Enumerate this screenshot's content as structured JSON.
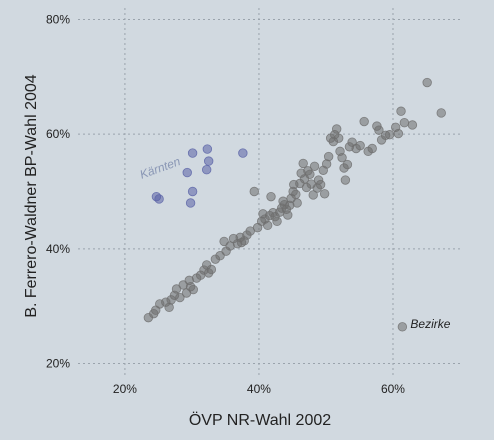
{
  "chart_data": {
    "type": "scatter",
    "xlabel": "ÖVP NR-Wahl 2002",
    "ylabel": "B. Ferrero-Waldner BP-Wahl 2004",
    "xlim": [
      0.13,
      0.7
    ],
    "ylim": [
      0.18,
      0.82
    ],
    "x_ticks": [
      0.2,
      0.4,
      0.6
    ],
    "x_tick_labels": [
      "20%",
      "40%",
      "60%"
    ],
    "y_ticks": [
      0.2,
      0.4,
      0.6,
      0.8
    ],
    "y_tick_labels": [
      "20%",
      "40%",
      "60%",
      "80%"
    ],
    "grid": true,
    "annotations": [
      {
        "text": "Kärnten",
        "x": 0.225,
        "y": 0.522,
        "color": "#8a97b5",
        "rotate": -20
      },
      {
        "text": "Bezirke",
        "x": 0.626,
        "y": 0.262,
        "color": "#222222",
        "marker_x": 0.614,
        "marker_y": 0.264
      }
    ],
    "series": [
      {
        "name": "Kärnten",
        "color": "#5961a6",
        "points": [
          [
            0.247,
            0.491
          ],
          [
            0.251,
            0.487
          ],
          [
            0.293,
            0.533
          ],
          [
            0.301,
            0.567
          ],
          [
            0.301,
            0.5
          ],
          [
            0.298,
            0.48
          ],
          [
            0.323,
            0.574
          ],
          [
            0.325,
            0.553
          ],
          [
            0.322,
            0.538
          ],
          [
            0.376,
            0.567
          ]
        ]
      },
      {
        "name": "",
        "color": "#6e6e6e",
        "points": [
          [
            0.235,
            0.28
          ],
          [
            0.243,
            0.287
          ],
          [
            0.246,
            0.293
          ],
          [
            0.252,
            0.304
          ],
          [
            0.261,
            0.307
          ],
          [
            0.266,
            0.298
          ],
          [
            0.269,
            0.311
          ],
          [
            0.274,
            0.319
          ],
          [
            0.277,
            0.33
          ],
          [
            0.282,
            0.315
          ],
          [
            0.287,
            0.337
          ],
          [
            0.292,
            0.323
          ],
          [
            0.296,
            0.345
          ],
          [
            0.298,
            0.334
          ],
          [
            0.302,
            0.329
          ],
          [
            0.307,
            0.349
          ],
          [
            0.313,
            0.354
          ],
          [
            0.318,
            0.363
          ],
          [
            0.322,
            0.372
          ],
          [
            0.325,
            0.358
          ],
          [
            0.329,
            0.364
          ],
          [
            0.335,
            0.382
          ],
          [
            0.342,
            0.388
          ],
          [
            0.348,
            0.413
          ],
          [
            0.351,
            0.396
          ],
          [
            0.357,
            0.405
          ],
          [
            0.362,
            0.418
          ],
          [
            0.368,
            0.409
          ],
          [
            0.372,
            0.42
          ],
          [
            0.374,
            0.411
          ],
          [
            0.378,
            0.414
          ],
          [
            0.382,
            0.424
          ],
          [
            0.387,
            0.431
          ],
          [
            0.393,
            0.5
          ],
          [
            0.398,
            0.437
          ],
          [
            0.404,
            0.448
          ],
          [
            0.406,
            0.461
          ],
          [
            0.409,
            0.452
          ],
          [
            0.413,
            0.441
          ],
          [
            0.416,
            0.458
          ],
          [
            0.418,
            0.491
          ],
          [
            0.421,
            0.463
          ],
          [
            0.424,
            0.456
          ],
          [
            0.427,
            0.448
          ],
          [
            0.431,
            0.464
          ],
          [
            0.434,
            0.471
          ],
          [
            0.436,
            0.483
          ],
          [
            0.438,
            0.477
          ],
          [
            0.441,
            0.469
          ],
          [
            0.443,
            0.459
          ],
          [
            0.446,
            0.476
          ],
          [
            0.448,
            0.488
          ],
          [
            0.451,
            0.5
          ],
          [
            0.452,
            0.512
          ],
          [
            0.455,
            0.495
          ],
          [
            0.457,
            0.48
          ],
          [
            0.461,
            0.514
          ],
          [
            0.463,
            0.532
          ],
          [
            0.466,
            0.549
          ],
          [
            0.468,
            0.522
          ],
          [
            0.471,
            0.507
          ],
          [
            0.473,
            0.536
          ],
          [
            0.476,
            0.53
          ],
          [
            0.478,
            0.513
          ],
          [
            0.481,
            0.494
          ],
          [
            0.483,
            0.544
          ],
          [
            0.487,
            0.506
          ],
          [
            0.489,
            0.52
          ],
          [
            0.492,
            0.512
          ],
          [
            0.496,
            0.537
          ],
          [
            0.498,
            0.496
          ],
          [
            0.501,
            0.548
          ],
          [
            0.504,
            0.561
          ],
          [
            0.507,
            0.593
          ],
          [
            0.511,
            0.587
          ],
          [
            0.513,
            0.599
          ],
          [
            0.516,
            0.609
          ],
          [
            0.519,
            0.593
          ],
          [
            0.521,
            0.57
          ],
          [
            0.524,
            0.559
          ],
          [
            0.527,
            0.541
          ],
          [
            0.529,
            0.52
          ],
          [
            0.532,
            0.547
          ],
          [
            0.535,
            0.578
          ],
          [
            0.539,
            0.586
          ],
          [
            0.545,
            0.575
          ],
          [
            0.551,
            0.58
          ],
          [
            0.557,
            0.622
          ],
          [
            0.563,
            0.57
          ],
          [
            0.569,
            0.575
          ],
          [
            0.576,
            0.614
          ],
          [
            0.579,
            0.607
          ],
          [
            0.583,
            0.59
          ],
          [
            0.589,
            0.598
          ],
          [
            0.595,
            0.599
          ],
          [
            0.604,
            0.612
          ],
          [
            0.608,
            0.601
          ],
          [
            0.612,
            0.64
          ],
          [
            0.617,
            0.62
          ],
          [
            0.629,
            0.616
          ],
          [
            0.651,
            0.69
          ],
          [
            0.672,
            0.637
          ]
        ]
      }
    ]
  }
}
